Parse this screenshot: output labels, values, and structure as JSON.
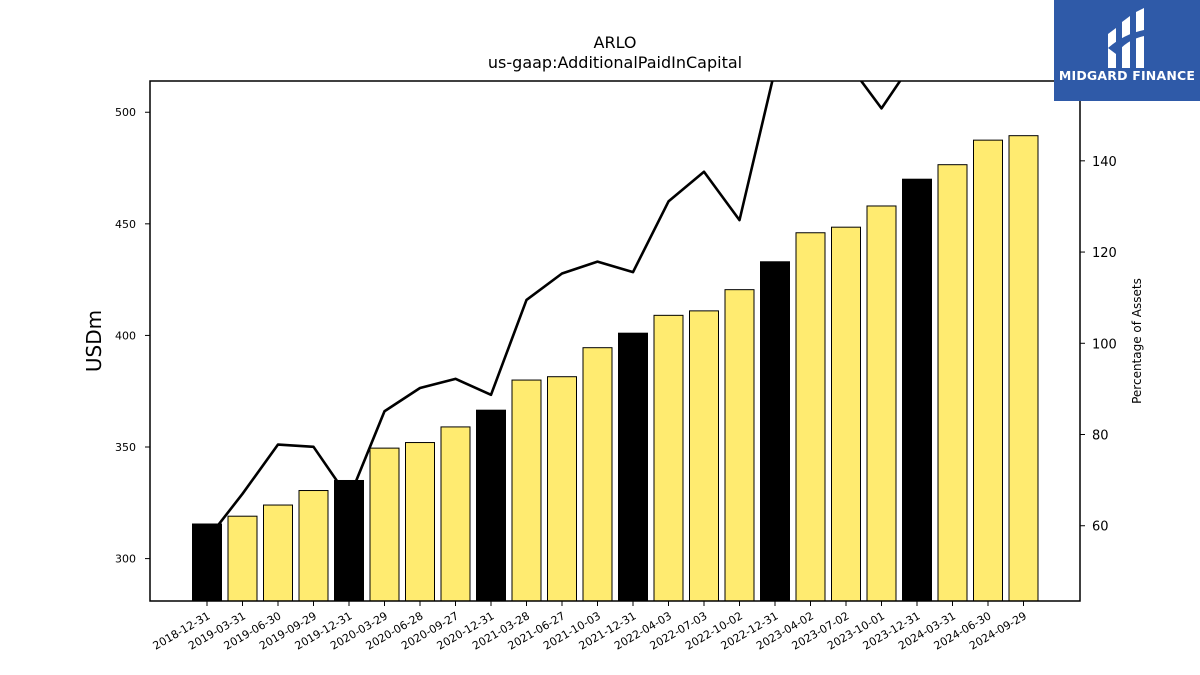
{
  "chart_data": {
    "type": "bar",
    "title": "ARLO",
    "subtitle": "us-gaap:AdditionalPaidInCapital",
    "ylabel": "USDm",
    "y2label": "Percentage of Assets",
    "ylim": [
      281,
      514
    ],
    "y2lim": [
      43.5,
      157.5
    ],
    "yticks": [
      300,
      350,
      400,
      450,
      500
    ],
    "y2ticks": [
      60,
      80,
      100,
      120,
      140
    ],
    "categories": [
      "2018-12-31",
      "2019-03-31",
      "2019-06-30",
      "2019-09-29",
      "2019-12-31",
      "2020-03-29",
      "2020-06-28",
      "2020-09-27",
      "2020-12-31",
      "2021-03-28",
      "2021-06-27",
      "2021-10-03",
      "2021-12-31",
      "2022-04-03",
      "2022-07-03",
      "2022-10-02",
      "2022-12-31",
      "2023-04-02",
      "2023-07-02",
      "2023-10-01",
      "2023-12-31",
      "2024-03-31",
      "2024-06-30",
      "2024-09-29"
    ],
    "series": [
      {
        "type": "bar",
        "axis": "left",
        "values": [
          315.5,
          319,
          324,
          330.5,
          335,
          349.5,
          352,
          359,
          366.5,
          380,
          381.5,
          394.5,
          401,
          409,
          411,
          420.5,
          433,
          446,
          448.5,
          458,
          470,
          476.5,
          487.5,
          489.5
        ],
        "colors": [
          "#000000",
          "#ffeb70",
          "#ffeb70",
          "#ffeb70",
          "#000000",
          "#ffeb70",
          "#ffeb70",
          "#ffeb70",
          "#000000",
          "#ffeb70",
          "#ffeb70",
          "#ffeb70",
          "#000000",
          "#ffeb70",
          "#ffeb70",
          "#ffeb70",
          "#000000",
          "#ffeb70",
          "#ffeb70",
          "#ffeb70",
          "#000000",
          "#ffeb70",
          "#ffeb70",
          "#ffeb70"
        ]
      },
      {
        "type": "line",
        "axis": "right",
        "values": [
          57,
          67,
          77.8,
          77.3,
          66,
          85.1,
          90.2,
          92.2,
          88.7,
          109.5,
          115.3,
          117.9,
          115.6,
          131.1,
          137.6,
          127,
          160,
          163,
          162,
          151.5,
          163,
          163,
          163,
          160
        ],
        "color": "#000000"
      }
    ]
  },
  "logo": {
    "name": "midgard-logo",
    "text": "MIDGARD FINANCE"
  }
}
